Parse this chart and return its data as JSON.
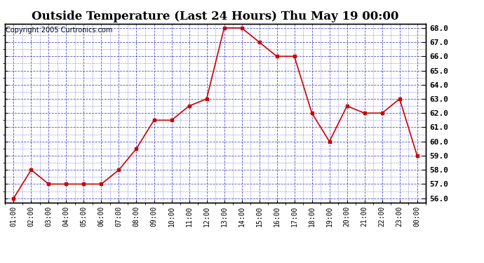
{
  "title": "Outside Temperature (Last 24 Hours) Thu May 19 00:00",
  "copyright": "Copyright 2005 Curtronics.com",
  "x_labels": [
    "01:00",
    "02:00",
    "03:00",
    "04:00",
    "05:00",
    "06:00",
    "07:00",
    "08:00",
    "09:00",
    "10:00",
    "11:00",
    "12:00",
    "13:00",
    "14:00",
    "15:00",
    "16:00",
    "17:00",
    "18:00",
    "19:00",
    "20:00",
    "21:00",
    "22:00",
    "23:00",
    "00:00"
  ],
  "y_values": [
    56.0,
    58.0,
    57.0,
    57.0,
    57.0,
    57.0,
    58.0,
    59.5,
    61.5,
    61.5,
    62.5,
    63.0,
    68.0,
    68.0,
    67.0,
    66.0,
    66.0,
    62.0,
    60.0,
    62.5,
    62.0,
    62.0,
    63.0,
    59.0
  ],
  "ylim_min": 56.0,
  "ylim_max": 68.0,
  "ytick_step": 1.0,
  "line_color": "#cc0000",
  "marker": "s",
  "marker_size": 3,
  "grid_color": "#3333cc",
  "bg_color": "#ffffff",
  "plot_bg_color": "#ffffff",
  "title_fontsize": 12,
  "copyright_fontsize": 7,
  "tick_fontsize": 7,
  "right_ytick_fontsize": 8
}
